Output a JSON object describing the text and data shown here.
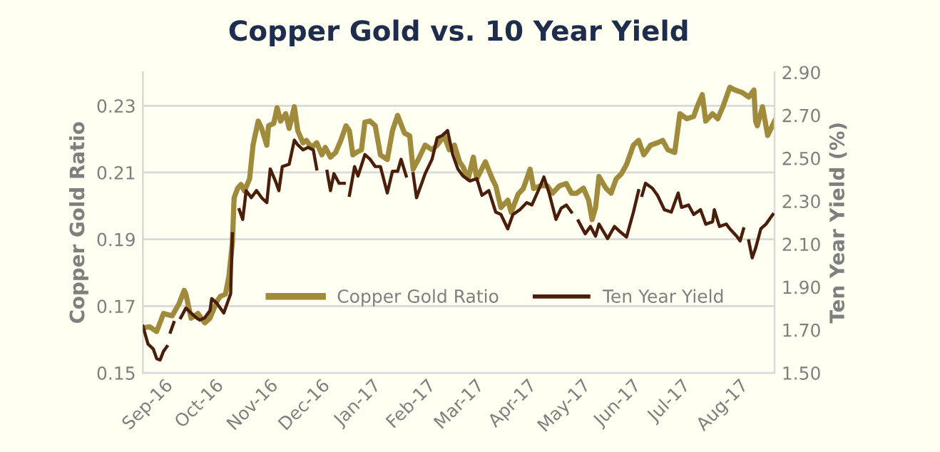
{
  "chart_data": {
    "type": "line",
    "title": "Copper Gold vs. 10 Year Yield",
    "ylabel": "Copper Gold Ratio",
    "y2label": "Ten Year Yield (%)",
    "xlim": [
      "2016-08-29",
      "2017-08-31"
    ],
    "xticks": [
      {
        "value": "2016-09-01",
        "label": "Sep-16"
      },
      {
        "value": "2016-10-01",
        "label": "Oct-16"
      },
      {
        "value": "2016-11-01",
        "label": "Nov-16"
      },
      {
        "value": "2016-12-01",
        "label": "Dec-16"
      },
      {
        "value": "2017-01-01",
        "label": "Jan-17"
      },
      {
        "value": "2017-02-01",
        "label": "Feb-17"
      },
      {
        "value": "2017-03-01",
        "label": "Mar-17"
      },
      {
        "value": "2017-04-01",
        "label": "Apr-17"
      },
      {
        "value": "2017-05-01",
        "label": "May-17"
      },
      {
        "value": "2017-06-01",
        "label": "Jun-17"
      },
      {
        "value": "2017-07-01",
        "label": "Jul-17"
      },
      {
        "value": "2017-08-01",
        "label": "Aug-17"
      }
    ],
    "ylim": [
      0.15,
      0.24
    ],
    "yticks": [
      0.15,
      0.17,
      0.19,
      0.21,
      0.23
    ],
    "y2lim": [
      1.5,
      2.9
    ],
    "y2ticks": [
      {
        "value": 1.5,
        "label": "1.50"
      },
      {
        "value": 1.7,
        "label": "1.70"
      },
      {
        "value": 1.9,
        "label": "1.90"
      },
      {
        "value": 2.1,
        "label": "2.10"
      },
      {
        "value": 2.3,
        "label": "2.30"
      },
      {
        "value": 2.5,
        "label": "2.50"
      },
      {
        "value": 2.7,
        "label": "2.70"
      },
      {
        "value": 2.9,
        "label": "2.90"
      }
    ],
    "grid": "y",
    "legend": "center",
    "marker": "none",
    "line_style": "solid",
    "series": [
      {
        "name": "Copper Gold Ratio",
        "color": "#a08a3c",
        "x": [
          "2016-08-29",
          "2016-09-02",
          "2016-09-06",
          "2016-09-10",
          "2016-09-15",
          "2016-09-19",
          "2016-09-22",
          "2016-09-23",
          "2016-09-26",
          "2016-09-30",
          "2016-10-04",
          "2016-10-07",
          "2016-10-11",
          "2016-10-13",
          "2016-10-16",
          "2016-10-18",
          "2016-10-20",
          "2016-10-21",
          "2016-10-23",
          "2016-10-25",
          "2016-10-27",
          "2016-10-30",
          "2016-11-01",
          "2016-11-04",
          "2016-11-06",
          "2016-11-09",
          "2016-11-10",
          "2016-11-13",
          "2016-11-15",
          "2016-11-17",
          "2016-11-20",
          "2016-11-22",
          "2016-11-25",
          "2016-11-27",
          "2016-11-30",
          "2016-12-02",
          "2016-12-05",
          "2016-12-08",
          "2016-12-11",
          "2016-12-13",
          "2016-12-16",
          "2016-12-19",
          "2016-12-22",
          "2016-12-25",
          "2016-12-27",
          "2016-12-29",
          "2016-12-31",
          "2017-01-03",
          "2017-01-05",
          "2017-01-08",
          "2017-01-11",
          "2017-01-14",
          "2017-01-18",
          "2017-01-21",
          "2017-01-24",
          "2017-01-28",
          "2017-01-31",
          "2017-02-02",
          "2017-02-05",
          "2017-02-09",
          "2017-02-13",
          "2017-02-16",
          "2017-02-20",
          "2017-02-23",
          "2017-02-26",
          "2017-03-01",
          "2017-03-03",
          "2017-03-06",
          "2017-03-09",
          "2017-03-11",
          "2017-03-16",
          "2017-03-20",
          "2017-03-22",
          "2017-03-25",
          "2017-03-29",
          "2017-03-31",
          "2017-04-04",
          "2017-04-07",
          "2017-04-11",
          "2017-04-13",
          "2017-04-17",
          "2017-04-21",
          "2017-04-24",
          "2017-04-28",
          "2017-05-02",
          "2017-05-05",
          "2017-05-08",
          "2017-05-12",
          "2017-05-15",
          "2017-05-17",
          "2017-05-19",
          "2017-05-21",
          "2017-05-25",
          "2017-05-28",
          "2017-05-31",
          "2017-06-03",
          "2017-06-06",
          "2017-06-10",
          "2017-06-13",
          "2017-06-16",
          "2017-06-20",
          "2017-06-24",
          "2017-06-27",
          "2017-06-30",
          "2017-07-04",
          "2017-07-07",
          "2017-07-11",
          "2017-07-15",
          "2017-07-17",
          "2017-07-20",
          "2017-07-22",
          "2017-07-26",
          "2017-07-29",
          "2017-08-01",
          "2017-08-05",
          "2017-08-08",
          "2017-08-12",
          "2017-08-16",
          "2017-08-19",
          "2017-08-20",
          "2017-08-21",
          "2017-08-24",
          "2017-08-27",
          "2017-08-31"
        ],
        "values": [
          0.1635,
          0.1638,
          0.1624,
          0.1678,
          0.1671,
          0.1707,
          0.1747,
          0.1736,
          0.1664,
          0.1678,
          0.165,
          0.1664,
          0.1714,
          0.1729,
          0.1736,
          0.179,
          0.189,
          0.2024,
          0.2052,
          0.2064,
          0.2045,
          0.2081,
          0.2182,
          0.2254,
          0.2232,
          0.2182,
          0.224,
          0.2247,
          0.2294,
          0.2254,
          0.2276,
          0.2232,
          0.2297,
          0.2225,
          0.2189,
          0.2196,
          0.2175,
          0.2189,
          0.2153,
          0.2175,
          0.2146,
          0.216,
          0.2196,
          0.224,
          0.2225,
          0.2153,
          0.216,
          0.2168,
          0.2251,
          0.2254,
          0.224,
          0.2153,
          0.2139,
          0.2225,
          0.2271,
          0.2218,
          0.221,
          0.211,
          0.2139,
          0.2182,
          0.2168,
          0.2182,
          0.221,
          0.2168,
          0.2182,
          0.2132,
          0.2117,
          0.2081,
          0.2146,
          0.2081,
          0.2132,
          0.2081,
          0.206,
          0.1995,
          0.2017,
          0.1981,
          0.2035,
          0.2052,
          0.211,
          0.2052,
          0.206,
          0.206,
          0.2038,
          0.206,
          0.2067,
          0.2038,
          0.2038,
          0.2053,
          0.2017,
          0.1959,
          0.1995,
          0.2088,
          0.2053,
          0.2038,
          0.2081,
          0.2096,
          0.2124,
          0.2182,
          0.2196,
          0.2153,
          0.2182,
          0.2189,
          0.2196,
          0.2168,
          0.216,
          0.2276,
          0.2261,
          0.2268,
          0.2297,
          0.2333,
          0.2254,
          0.2276,
          0.2261,
          0.2297,
          0.2355,
          0.2347,
          0.234,
          0.2326,
          0.2347,
          0.2254,
          0.224,
          0.2297,
          0.2211,
          0.2254
        ]
      },
      {
        "name": "Ten Year Yield",
        "color": "#4a1e0a",
        "axis": "y2",
        "x": [
          "2016-08-29",
          "2016-09-01",
          "2016-09-04",
          "2016-09-06",
          "2016-09-08",
          "2016-09-10",
          "2016-09-12",
          "2016-09-13",
          "2016-09-14",
          "2016-09-16",
          "2016-09-18",
          "2016-09-20",
          "2016-09-23",
          "2016-09-26",
          "2016-09-29",
          "2016-10-01",
          "2016-10-04",
          "2016-10-07",
          "2016-10-08",
          "2016-10-11",
          "2016-10-15",
          "2016-10-17",
          "2016-10-19",
          "2016-10-20",
          "2016-10-22",
          "2016-10-24",
          "2016-10-26",
          "2016-10-28",
          "2016-10-31",
          "2016-11-03",
          "2016-11-06",
          "2016-11-09",
          "2016-11-11",
          "2016-11-14",
          "2016-11-16",
          "2016-11-18",
          "2016-11-22",
          "2016-11-25",
          "2016-11-27",
          "2016-11-30",
          "2016-12-03",
          "2016-12-06",
          "2016-12-08",
          "2016-12-11",
          "2016-12-14",
          "2016-12-16",
          "2016-12-18",
          "2016-12-21",
          "2016-12-24",
          "2016-12-26",
          "2016-12-27",
          "2016-12-30",
          "2017-01-01",
          "2017-01-05",
          "2017-01-08",
          "2017-01-11",
          "2017-01-14",
          "2017-01-18",
          "2017-01-21",
          "2017-01-24",
          "2017-01-26",
          "2017-01-29",
          "2017-01-31",
          "2017-02-02",
          "2017-02-04",
          "2017-02-09",
          "2017-02-13",
          "2017-02-16",
          "2017-02-19",
          "2017-02-22",
          "2017-02-25",
          "2017-02-28",
          "2017-03-03",
          "2017-03-07",
          "2017-03-11",
          "2017-03-14",
          "2017-03-18",
          "2017-03-22",
          "2017-03-25",
          "2017-03-29",
          "2017-04-01",
          "2017-04-05",
          "2017-04-09",
          "2017-04-12",
          "2017-04-17",
          "2017-04-19",
          "2017-04-22",
          "2017-04-26",
          "2017-04-29",
          "2017-05-02",
          "2017-05-05",
          "2017-05-07",
          "2017-05-09",
          "2017-05-13",
          "2017-05-16",
          "2017-05-19",
          "2017-05-21",
          "2017-05-26",
          "2017-05-30",
          "2017-06-02",
          "2017-06-06",
          "2017-06-10",
          "2017-06-13",
          "2017-06-14",
          "2017-06-15",
          "2017-06-17",
          "2017-06-21",
          "2017-06-24",
          "2017-06-28",
          "2017-07-02",
          "2017-07-06",
          "2017-07-08",
          "2017-07-12",
          "2017-07-15",
          "2017-07-19",
          "2017-07-22",
          "2017-07-26",
          "2017-07-27",
          "2017-07-30",
          "2017-08-03",
          "2017-08-05",
          "2017-08-09",
          "2017-08-11",
          "2017-08-13",
          "2017-08-14",
          "2017-08-16",
          "2017-08-18",
          "2017-08-20",
          "2017-08-23",
          "2017-08-26",
          "2017-08-30"
        ],
        "values": [
          1.717,
          1.634,
          1.612,
          1.567,
          1.56,
          1.601,
          1.623,
          null,
          1.69,
          1.735,
          null,
          1.757,
          1.802,
          1.779,
          1.757,
          1.746,
          1.757,
          1.791,
          1.846,
          1.824,
          1.779,
          1.824,
          1.869,
          2.148,
          null,
          2.26,
          2.215,
          2.349,
          2.316,
          2.349,
          2.316,
          2.293,
          2.45,
          2.394,
          2.349,
          2.461,
          2.472,
          2.584,
          2.562,
          2.539,
          2.55,
          2.539,
          2.45,
          null,
          2.439,
          2.349,
          2.428,
          2.383,
          2.383,
          null,
          2.327,
          2.461,
          2.417,
          2.517,
          2.495,
          2.461,
          2.461,
          2.338,
          2.439,
          2.439,
          2.495,
          2.417,
          null,
          2.428,
          2.316,
          2.428,
          2.495,
          2.595,
          2.606,
          2.629,
          2.517,
          2.45,
          2.417,
          2.394,
          2.405,
          2.327,
          2.349,
          2.249,
          2.238,
          2.171,
          2.238,
          2.26,
          2.293,
          2.282,
          2.372,
          2.412,
          2.338,
          2.215,
          2.267,
          2.282,
          2.249,
          null,
          2.208,
          2.148,
          2.182,
          2.137,
          2.193,
          2.126,
          2.182,
          2.159,
          2.133,
          2.249,
          2.349,
          null,
          2.327,
          2.383,
          2.36,
          2.327,
          2.26,
          2.249,
          2.338,
          2.271,
          2.282,
          2.238,
          2.26,
          2.193,
          2.204,
          2.26,
          2.182,
          2.193,
          2.171,
          2.137,
          2.115,
          2.171,
          null,
          2.115,
          2.036,
          2.081,
          2.171,
          2.193,
          2.238
        ]
      }
    ]
  }
}
